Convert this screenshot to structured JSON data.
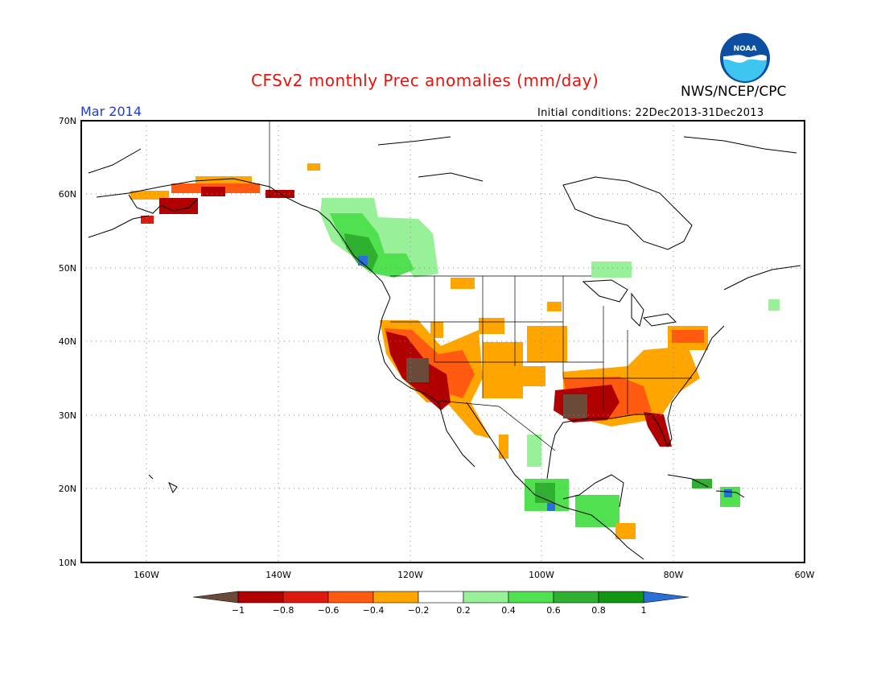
{
  "header": {
    "title": "CFSv2 monthly Prec anomalies (mm/day)",
    "agency": "NWS/NCEP/CPC",
    "logo_text": "NOAA",
    "month": "Mar 2014",
    "initial_conditions": "Initial conditions: 22Dec2013-31Dec2013"
  },
  "map": {
    "lat_labels": [
      "70N",
      "60N",
      "50N",
      "40N",
      "30N",
      "20N",
      "10N"
    ],
    "lon_labels": [
      "160W",
      "140W",
      "120W",
      "100W",
      "80W",
      "60W"
    ]
  },
  "legend": {
    "tick_labels": [
      "-1",
      "-0.8",
      "-0.6",
      "-0.4",
      "-0.2",
      "0.2",
      "0.4",
      "0.6",
      "0.8",
      "1"
    ],
    "colors": [
      "#6b4a3a",
      "#b00000",
      "#dd1a10",
      "#ff5a10",
      "#ffa500",
      "#ffffff",
      "#98f098",
      "#50e050",
      "#30b030",
      "#129612",
      "#2a6fd6"
    ]
  },
  "anomaly_regions": [
    {
      "name": "alaska-south-coast",
      "category": "-0.4"
    },
    {
      "name": "alaska-kenai",
      "category": "-0.8"
    },
    {
      "name": "pacific-northwest-canada",
      "category": "0.4"
    },
    {
      "name": "california-southwest",
      "category": "-1"
    },
    {
      "name": "great-basin",
      "category": "-0.6"
    },
    {
      "name": "central-plains",
      "category": "-0.4"
    },
    {
      "name": "gulf-coast",
      "category": "-1"
    },
    {
      "name": "southeast",
      "category": "-0.6"
    },
    {
      "name": "florida",
      "category": "-0.8"
    },
    {
      "name": "mid-atlantic",
      "category": "-0.4"
    },
    {
      "name": "great-lakes",
      "category": "0.2"
    },
    {
      "name": "mexico-south",
      "category": "0.6"
    },
    {
      "name": "caribbean",
      "category": "0.8"
    }
  ]
}
